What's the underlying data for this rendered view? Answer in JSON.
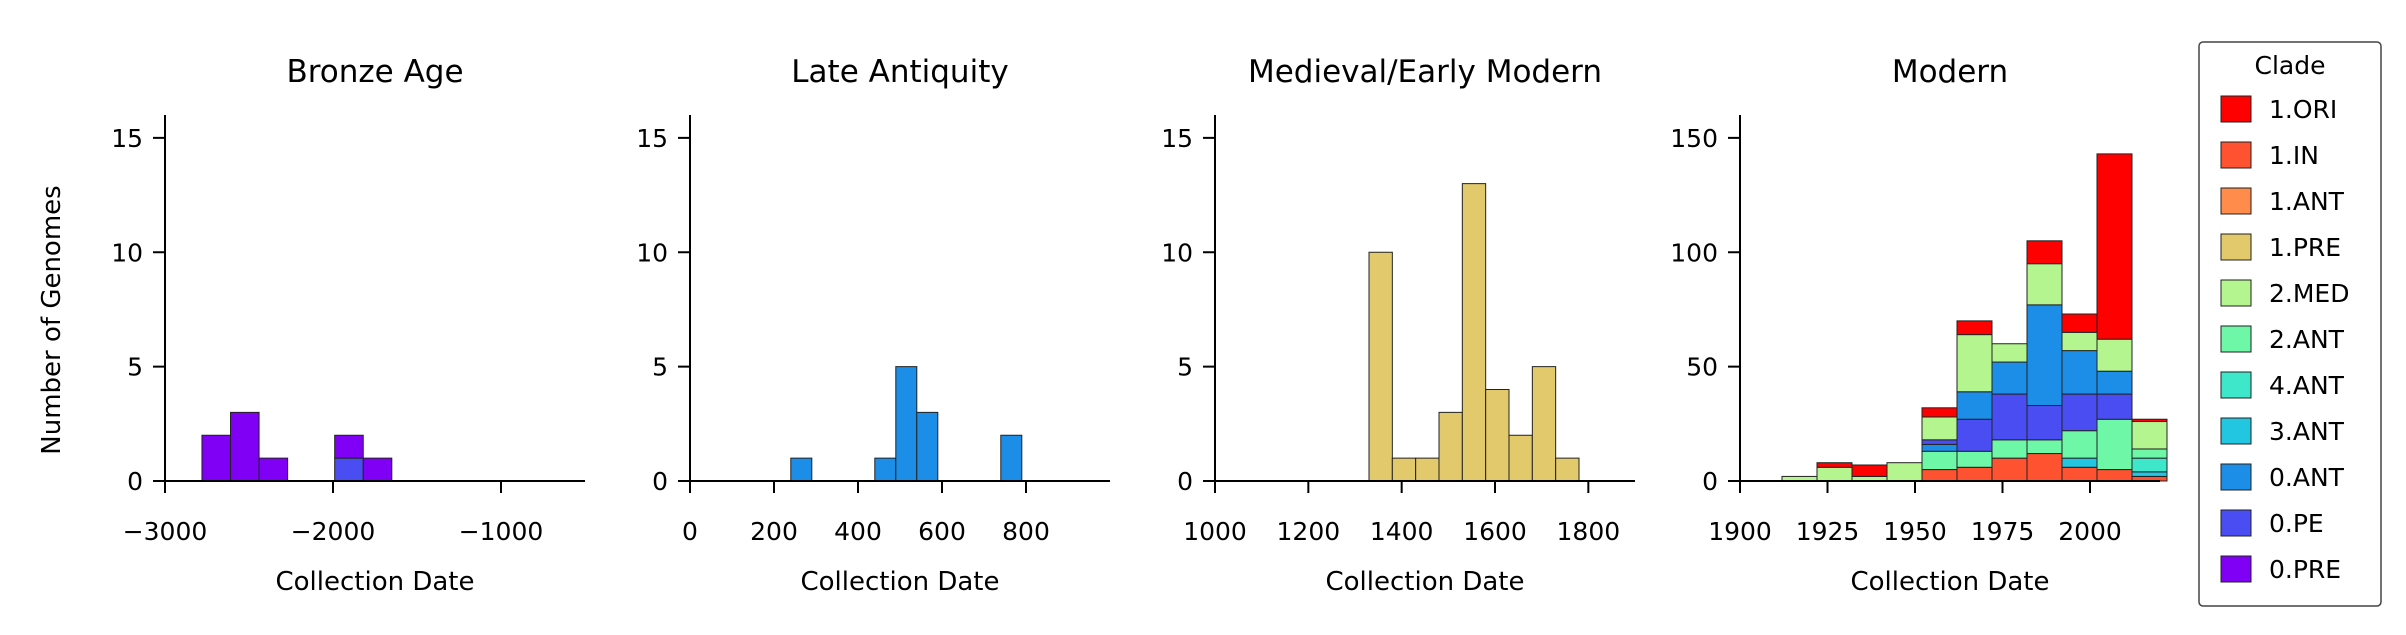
{
  "figure": {
    "ylabel": "Number of Genomes",
    "legend": {
      "title": "Clade",
      "placement": "right",
      "entries": [
        {
          "label": "1.ORI",
          "color": "#ff0000"
        },
        {
          "label": "1.IN",
          "color": "#ff5230"
        },
        {
          "label": "1.ANT",
          "color": "#ff8c4a"
        },
        {
          "label": "1.PRE",
          "color": "#e2c96c"
        },
        {
          "label": "2.MED",
          "color": "#b4f590"
        },
        {
          "label": "2.ANT",
          "color": "#6ff7a8"
        },
        {
          "label": "4.ANT",
          "color": "#3ee7c9"
        },
        {
          "label": "3.ANT",
          "color": "#22c6e1"
        },
        {
          "label": "0.ANT",
          "color": "#1c8ee8"
        },
        {
          "label": "0.PE",
          "color": "#4a4ef2"
        },
        {
          "label": "0.PRE",
          "color": "#8000f5"
        }
      ]
    }
  },
  "chart_data": [
    {
      "type": "bar",
      "title": "Bronze Age",
      "xlabel": "Collection Date",
      "ylabel": "Number of Genomes",
      "xlim": [
        -3000,
        -500
      ],
      "ylim": [
        0,
        16
      ],
      "xticks": [
        -3000,
        -2000,
        -1000
      ],
      "xtick_labels": [
        "−3000",
        "−2000",
        "−1000"
      ],
      "yticks": [
        0,
        5,
        10,
        15
      ],
      "bin_width": 170,
      "bins": [
        {
          "x": -2780,
          "stack": [
            {
              "clade": "0.PRE",
              "value": 2
            }
          ]
        },
        {
          "x": -2610,
          "stack": [
            {
              "clade": "0.PRE",
              "value": 3
            }
          ]
        },
        {
          "x": -2440,
          "stack": [
            {
              "clade": "0.PRE",
              "value": 1
            }
          ]
        },
        {
          "x": -1990,
          "stack": [
            {
              "clade": "0.PE",
              "value": 1
            },
            {
              "clade": "0.PRE",
              "value": 1
            }
          ]
        },
        {
          "x": -1820,
          "stack": [
            {
              "clade": "0.PRE",
              "value": 1
            }
          ]
        }
      ]
    },
    {
      "type": "bar",
      "title": "Late Antiquity",
      "xlabel": "Collection Date",
      "ylabel": "",
      "xlim": [
        0,
        1000
      ],
      "ylim": [
        0,
        16
      ],
      "xticks": [
        0,
        200,
        400,
        600,
        800
      ],
      "xtick_labels": [
        "0",
        "200",
        "400",
        "600",
        "800"
      ],
      "yticks": [
        0,
        5,
        10,
        15
      ],
      "bin_width": 50,
      "bins": [
        {
          "x": 240,
          "stack": [
            {
              "clade": "0.ANT",
              "value": 1
            }
          ]
        },
        {
          "x": 440,
          "stack": [
            {
              "clade": "0.ANT",
              "value": 1
            }
          ]
        },
        {
          "x": 490,
          "stack": [
            {
              "clade": "0.ANT",
              "value": 5
            }
          ]
        },
        {
          "x": 540,
          "stack": [
            {
              "clade": "0.ANT",
              "value": 3
            }
          ]
        },
        {
          "x": 740,
          "stack": [
            {
              "clade": "0.ANT",
              "value": 2
            }
          ]
        }
      ]
    },
    {
      "type": "bar",
      "title": "Medieval/Early Modern",
      "xlabel": "Collection Date",
      "ylabel": "",
      "xlim": [
        1000,
        1900
      ],
      "ylim": [
        0,
        16
      ],
      "xticks": [
        1000,
        1200,
        1400,
        1600,
        1800
      ],
      "xtick_labels": [
        "1000",
        "1200",
        "1400",
        "1600",
        "1800"
      ],
      "yticks": [
        0,
        5,
        10,
        15
      ],
      "bin_width": 50,
      "bins": [
        {
          "x": 1330,
          "stack": [
            {
              "clade": "1.PRE",
              "value": 10
            }
          ]
        },
        {
          "x": 1380,
          "stack": [
            {
              "clade": "1.PRE",
              "value": 1
            }
          ]
        },
        {
          "x": 1430,
          "stack": [
            {
              "clade": "1.PRE",
              "value": 1
            }
          ]
        },
        {
          "x": 1480,
          "stack": [
            {
              "clade": "1.PRE",
              "value": 3
            }
          ]
        },
        {
          "x": 1530,
          "stack": [
            {
              "clade": "1.PRE",
              "value": 13
            }
          ]
        },
        {
          "x": 1580,
          "stack": [
            {
              "clade": "1.PRE",
              "value": 4
            }
          ]
        },
        {
          "x": 1630,
          "stack": [
            {
              "clade": "1.PRE",
              "value": 2
            }
          ]
        },
        {
          "x": 1680,
          "stack": [
            {
              "clade": "1.PRE",
              "value": 5
            }
          ]
        },
        {
          "x": 1730,
          "stack": [
            {
              "clade": "1.PRE",
              "value": 1
            }
          ]
        }
      ]
    },
    {
      "type": "bar",
      "title": "Modern",
      "xlabel": "Collection Date",
      "ylabel": "",
      "xlim": [
        1900,
        2020
      ],
      "ylim": [
        0,
        160
      ],
      "xticks": [
        1900,
        1925,
        1950,
        1975,
        2000
      ],
      "xtick_labels": [
        "1900",
        "1925",
        "1950",
        "1975",
        "2000"
      ],
      "yticks": [
        0,
        50,
        100,
        150
      ],
      "bin_width": 10,
      "bins": [
        {
          "x": 1912,
          "stack": [
            {
              "clade": "2.MED",
              "value": 2
            }
          ]
        },
        {
          "x": 1922,
          "stack": [
            {
              "clade": "2.MED",
              "value": 6
            },
            {
              "clade": "1.ORI",
              "value": 2
            }
          ]
        },
        {
          "x": 1932,
          "stack": [
            {
              "clade": "2.MED",
              "value": 2
            },
            {
              "clade": "1.ORI",
              "value": 5
            }
          ]
        },
        {
          "x": 1942,
          "stack": [
            {
              "clade": "2.MED",
              "value": 8
            }
          ]
        },
        {
          "x": 1952,
          "stack": [
            {
              "clade": "1.IN",
              "value": 5
            },
            {
              "clade": "2.ANT",
              "value": 8
            },
            {
              "clade": "0.ANT",
              "value": 3
            },
            {
              "clade": "0.PE",
              "value": 2
            },
            {
              "clade": "2.MED",
              "value": 10
            },
            {
              "clade": "1.ORI",
              "value": 4
            }
          ]
        },
        {
          "x": 1962,
          "stack": [
            {
              "clade": "1.IN",
              "value": 6
            },
            {
              "clade": "2.ANT",
              "value": 7
            },
            {
              "clade": "0.PE",
              "value": 14
            },
            {
              "clade": "0.ANT",
              "value": 12
            },
            {
              "clade": "2.MED",
              "value": 25
            },
            {
              "clade": "1.ORI",
              "value": 6
            }
          ]
        },
        {
          "x": 1972,
          "stack": [
            {
              "clade": "1.IN",
              "value": 10
            },
            {
              "clade": "2.ANT",
              "value": 8
            },
            {
              "clade": "0.PE",
              "value": 20
            },
            {
              "clade": "0.ANT",
              "value": 14
            },
            {
              "clade": "2.MED",
              "value": 8
            }
          ]
        },
        {
          "x": 1982,
          "stack": [
            {
              "clade": "1.IN",
              "value": 12
            },
            {
              "clade": "2.ANT",
              "value": 6
            },
            {
              "clade": "0.PE",
              "value": 15
            },
            {
              "clade": "0.ANT",
              "value": 44
            },
            {
              "clade": "2.MED",
              "value": 18
            },
            {
              "clade": "1.ORI",
              "value": 10
            }
          ]
        },
        {
          "x": 1992,
          "stack": [
            {
              "clade": "1.IN",
              "value": 6
            },
            {
              "clade": "3.ANT",
              "value": 4
            },
            {
              "clade": "2.ANT",
              "value": 12
            },
            {
              "clade": "0.PE",
              "value": 16
            },
            {
              "clade": "0.ANT",
              "value": 19
            },
            {
              "clade": "2.MED",
              "value": 8
            },
            {
              "clade": "1.ORI",
              "value": 8
            }
          ]
        },
        {
          "x": 2002,
          "stack": [
            {
              "clade": "1.IN",
              "value": 5
            },
            {
              "clade": "2.ANT",
              "value": 22
            },
            {
              "clade": "0.PE",
              "value": 11
            },
            {
              "clade": "0.ANT",
              "value": 10
            },
            {
              "clade": "2.MED",
              "value": 14
            },
            {
              "clade": "1.ORI",
              "value": 81
            }
          ]
        },
        {
          "x": 2012,
          "stack": [
            {
              "clade": "1.IN",
              "value": 2
            },
            {
              "clade": "3.ANT",
              "value": 2
            },
            {
              "clade": "4.ANT",
              "value": 6
            },
            {
              "clade": "2.ANT",
              "value": 4
            },
            {
              "clade": "2.MED",
              "value": 12
            },
            {
              "clade": "1.ORI",
              "value": 1
            }
          ]
        }
      ]
    }
  ]
}
